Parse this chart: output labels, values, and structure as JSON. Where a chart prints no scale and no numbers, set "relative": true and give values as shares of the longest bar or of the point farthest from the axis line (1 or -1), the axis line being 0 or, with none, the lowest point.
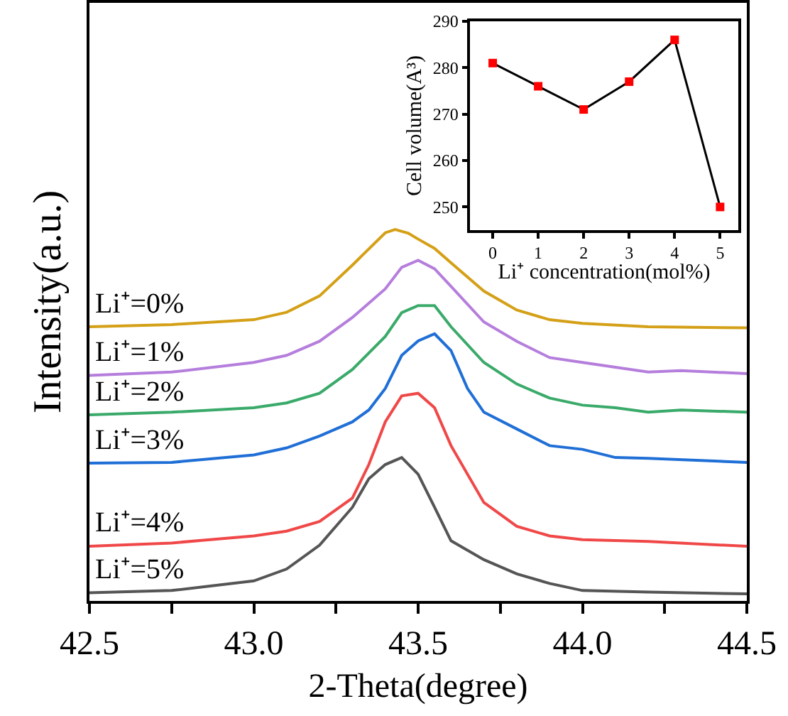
{
  "chart_data": [
    {
      "type": "line",
      "xlabel": "2-Theta(degree)",
      "ylabel": "Intensity(a.u.)",
      "relative": true,
      "tick_labels": "x",
      "xlim": [
        42.5,
        44.5
      ],
      "xticks": [
        42.5,
        {
          "value": 42.75,
          "label": null
        },
        "43.0",
        {
          "value": 43.25,
          "label": null
        },
        43.5,
        {
          "value": 43.75,
          "label": null
        },
        "44.0",
        {
          "value": 44.25,
          "label": null
        },
        44.5
      ],
      "series": [
        {
          "name": "Li⁺=0%",
          "color": "#d4a017",
          "x": [
            42.5,
            42.75,
            43.0,
            43.1,
            43.2,
            43.3,
            43.4,
            43.43,
            43.47,
            43.5,
            43.55,
            43.6,
            43.7,
            43.8,
            43.9,
            44.0,
            44.2,
            44.5
          ],
          "values": [
            0.738,
            0.744,
            0.757,
            0.777,
            0.821,
            0.904,
            0.991,
            1.0,
            0.99,
            0.974,
            0.949,
            0.91,
            0.834,
            0.783,
            0.757,
            0.747,
            0.738,
            0.735
          ]
        },
        {
          "name": "Li⁺=1%",
          "color": "#b57edc",
          "x": [
            42.5,
            42.75,
            43.0,
            43.1,
            43.2,
            43.3,
            43.4,
            43.45,
            43.5,
            43.55,
            43.6,
            43.7,
            43.8,
            43.9,
            44.0,
            44.1,
            44.2,
            44.3,
            44.5
          ],
          "values": [
            0.607,
            0.616,
            0.642,
            0.661,
            0.699,
            0.763,
            0.84,
            0.898,
            0.917,
            0.894,
            0.847,
            0.751,
            0.699,
            0.655,
            0.642,
            0.629,
            0.616,
            0.62,
            0.612
          ]
        },
        {
          "name": "Li⁺=2%",
          "color": "#3aaa6a",
          "x": [
            42.5,
            42.75,
            43.0,
            43.1,
            43.2,
            43.3,
            43.4,
            43.45,
            43.5,
            43.55,
            43.6,
            43.7,
            43.8,
            43.9,
            44.0,
            44.1,
            44.2,
            44.3,
            44.5
          ],
          "values": [
            0.501,
            0.508,
            0.52,
            0.533,
            0.559,
            0.623,
            0.712,
            0.776,
            0.795,
            0.795,
            0.738,
            0.642,
            0.584,
            0.546,
            0.527,
            0.52,
            0.508,
            0.514,
            0.508
          ]
        },
        {
          "name": "Li⁺=3%",
          "color": "#1f6fd6",
          "x": [
            42.5,
            42.75,
            43.0,
            43.1,
            43.2,
            43.3,
            43.35,
            43.4,
            43.45,
            43.5,
            43.55,
            43.6,
            43.65,
            43.7,
            43.8,
            43.9,
            44.0,
            44.1,
            44.2,
            44.5
          ],
          "values": [
            0.371,
            0.373,
            0.393,
            0.412,
            0.444,
            0.482,
            0.514,
            0.572,
            0.661,
            0.7,
            0.719,
            0.674,
            0.572,
            0.508,
            0.463,
            0.418,
            0.408,
            0.386,
            0.384,
            0.373
          ]
        },
        {
          "name": "Li⁺=4%",
          "color": "#f04848",
          "x": [
            42.5,
            42.75,
            43.0,
            43.1,
            43.2,
            43.3,
            43.35,
            43.4,
            43.45,
            43.5,
            43.55,
            43.6,
            43.7,
            43.8,
            43.9,
            44.0,
            44.2,
            44.5
          ],
          "values": [
            0.147,
            0.156,
            0.175,
            0.188,
            0.214,
            0.277,
            0.367,
            0.482,
            0.552,
            0.559,
            0.52,
            0.418,
            0.265,
            0.201,
            0.175,
            0.165,
            0.16,
            0.147
          ]
        },
        {
          "name": "Li⁺=5%",
          "color": "#555555",
          "x": [
            42.5,
            42.75,
            43.0,
            43.1,
            43.2,
            43.3,
            43.35,
            43.4,
            43.45,
            43.5,
            43.55,
            43.6,
            43.7,
            43.8,
            43.9,
            44.0,
            44.2,
            44.5
          ],
          "values": [
            0.022,
            0.028,
            0.054,
            0.086,
            0.15,
            0.252,
            0.329,
            0.367,
            0.386,
            0.341,
            0.252,
            0.162,
            0.111,
            0.073,
            0.047,
            0.028,
            0.024,
            0.019
          ]
        }
      ]
    },
    {
      "type": "line",
      "xlabel": "Li⁺ concentration(mol%)",
      "ylabel": "Cell volume(A³)",
      "marker": "square",
      "x": [
        0,
        1,
        2,
        3,
        4,
        5
      ],
      "xlim": [
        -0.5,
        5.4
      ],
      "xticks": [
        0,
        1,
        2,
        3,
        4,
        5
      ],
      "ylim": [
        245,
        290
      ],
      "yticks": [
        250,
        260,
        270,
        280,
        290
      ],
      "series": [
        {
          "color": "#000000",
          "colors": [
            "#ff0000",
            "#ff0000",
            "#ff0000",
            "#ff0000",
            "#ff0000",
            "#ff0000"
          ],
          "values": [
            281,
            276,
            271,
            277,
            286,
            250
          ]
        }
      ]
    }
  ]
}
